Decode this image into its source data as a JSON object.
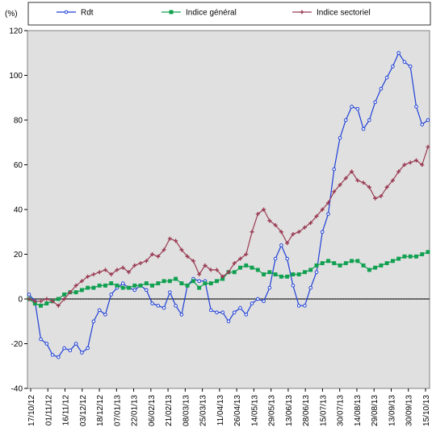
{
  "chart_data": {
    "type": "line",
    "ylabel": "(%)",
    "ylim": [
      -40,
      120
    ],
    "y_ticks": [
      -40,
      -20,
      0,
      20,
      40,
      60,
      80,
      100,
      120
    ],
    "grid": false,
    "legend_position": "top",
    "x_tick_labels": [
      "17/10/12",
      "01/11/12",
      "16/11/12",
      "03/12/12",
      "18/12/12",
      "07/01/13",
      "22/01/13",
      "06/02/13",
      "21/02/13",
      "08/03/13",
      "25/03/13",
      "11/04/13",
      "26/04/13",
      "14/05/13",
      "29/05/13",
      "13/06/13",
      "28/06/13",
      "15/07/13",
      "30/07/13",
      "14/08/13",
      "29/08/13",
      "13/09/13",
      "30/09/13",
      "15/10/13"
    ],
    "series": [
      {
        "name": "Rdt",
        "color": "#1f3fd6",
        "marker": "circle",
        "values": [
          2,
          -1,
          -18,
          -20,
          -25,
          -26,
          -22,
          -23,
          -20,
          -24,
          -22,
          -10,
          -5,
          -7,
          2,
          5,
          7,
          5,
          4,
          6,
          4,
          -2,
          -3,
          -4,
          3,
          -3,
          -7,
          6,
          9,
          8,
          8,
          -5,
          -6,
          -6,
          -10,
          -6,
          -4,
          -7,
          -2,
          0,
          -1,
          5,
          18,
          24,
          18,
          6,
          -3,
          -3,
          5,
          12,
          30,
          38,
          58,
          72,
          80,
          86,
          85,
          76,
          80,
          88,
          94,
          99,
          104,
          110,
          106,
          104,
          86,
          78,
          80
        ]
      },
      {
        "name": "Indice général",
        "color": "#10a050",
        "marker": "square",
        "values": [
          0,
          -2,
          -3,
          -2,
          -1,
          0,
          2,
          3,
          3,
          4,
          5,
          5,
          6,
          6,
          7,
          6,
          5,
          5,
          6,
          6,
          7,
          6,
          7,
          8,
          8,
          9,
          7,
          6,
          8,
          5,
          7,
          7,
          8,
          9,
          12,
          12,
          14,
          15,
          14,
          13,
          11,
          12,
          11,
          10,
          10,
          11,
          11,
          12,
          13,
          15,
          16,
          17,
          16,
          15,
          16,
          17,
          17,
          15,
          13,
          14,
          15,
          16,
          17,
          18,
          19,
          19,
          19,
          20,
          21
        ]
      },
      {
        "name": "Indice sectoriel",
        "color": "#9a3b53",
        "marker": "plus",
        "values": [
          0,
          -1,
          -1,
          0,
          -1,
          -3,
          0,
          3,
          6,
          8,
          10,
          11,
          12,
          13,
          11,
          13,
          14,
          12,
          15,
          16,
          17,
          20,
          19,
          22,
          27,
          26,
          22,
          19,
          17,
          11,
          15,
          13,
          13,
          10,
          12,
          16,
          18,
          20,
          30,
          38,
          40,
          35,
          33,
          30,
          25,
          29,
          30,
          32,
          34,
          37,
          40,
          43,
          48,
          51,
          54,
          57,
          53,
          52,
          50,
          45,
          46,
          50,
          53,
          57,
          60,
          61,
          62,
          60,
          68
        ]
      }
    ]
  }
}
